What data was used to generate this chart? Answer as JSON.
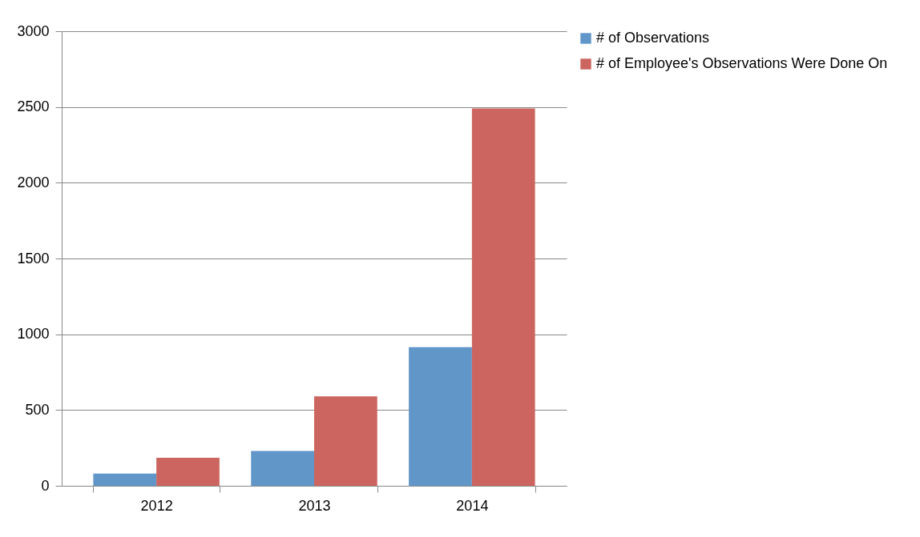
{
  "chart_data": {
    "type": "bar",
    "categories": [
      "2012",
      "2013",
      "2014"
    ],
    "series": [
      {
        "name": "# of Observations",
        "color": "#6196c9",
        "values": [
          80,
          230,
          915
        ]
      },
      {
        "name": "# of Employee's Observations Were Done On",
        "color": "#cc655f",
        "values": [
          185,
          590,
          2490
        ]
      }
    ],
    "ylim": [
      0,
      3000
    ],
    "yticks": [
      0,
      500,
      1000,
      1500,
      2000,
      2500,
      3000
    ],
    "grid": "y",
    "legend": "right"
  }
}
